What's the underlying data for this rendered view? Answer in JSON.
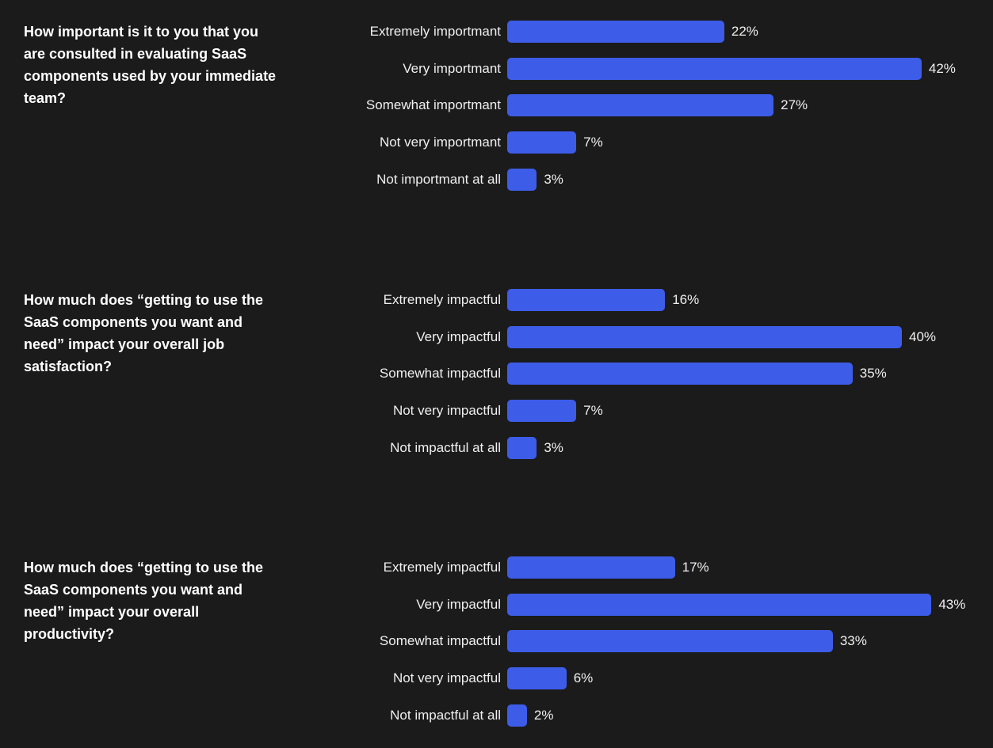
{
  "chart_data": [
    {
      "type": "bar",
      "title": "How important is it to you that you are consulted in evaluating SaaS components used by your immediate team?",
      "categories": [
        "Extremely importmant",
        "Very importmant",
        "Somewhat importmant",
        "Not very importmant",
        "Not importmant at all"
      ],
      "values": [
        22,
        42,
        27,
        7,
        3
      ],
      "value_labels": [
        "22%",
        "42%",
        "27%",
        "7%",
        "3%"
      ],
      "color": "#3d5ce8"
    },
    {
      "type": "bar",
      "title": "How much does “getting to use the SaaS components you want and need” impact your overall job satisfaction?",
      "categories": [
        "Extremely impactful",
        "Very impactful",
        "Somewhat impactful",
        "Not very impactful",
        "Not impactful at all"
      ],
      "values": [
        16,
        40,
        35,
        7,
        3
      ],
      "value_labels": [
        "16%",
        "40%",
        "35%",
        "7%",
        "3%"
      ],
      "color": "#3d5ce8"
    },
    {
      "type": "bar",
      "title": "How much does “getting to use the SaaS components you want and need” impact your overall productivity?",
      "categories": [
        "Extremely impactful",
        "Very impactful",
        "Somewhat impactful",
        "Not very impactful",
        "Not impactful at all"
      ],
      "values": [
        17,
        43,
        33,
        6,
        2
      ],
      "value_labels": [
        "17%",
        "43%",
        "33%",
        "6%",
        "2%"
      ],
      "color": "#3d5ce8"
    }
  ]
}
